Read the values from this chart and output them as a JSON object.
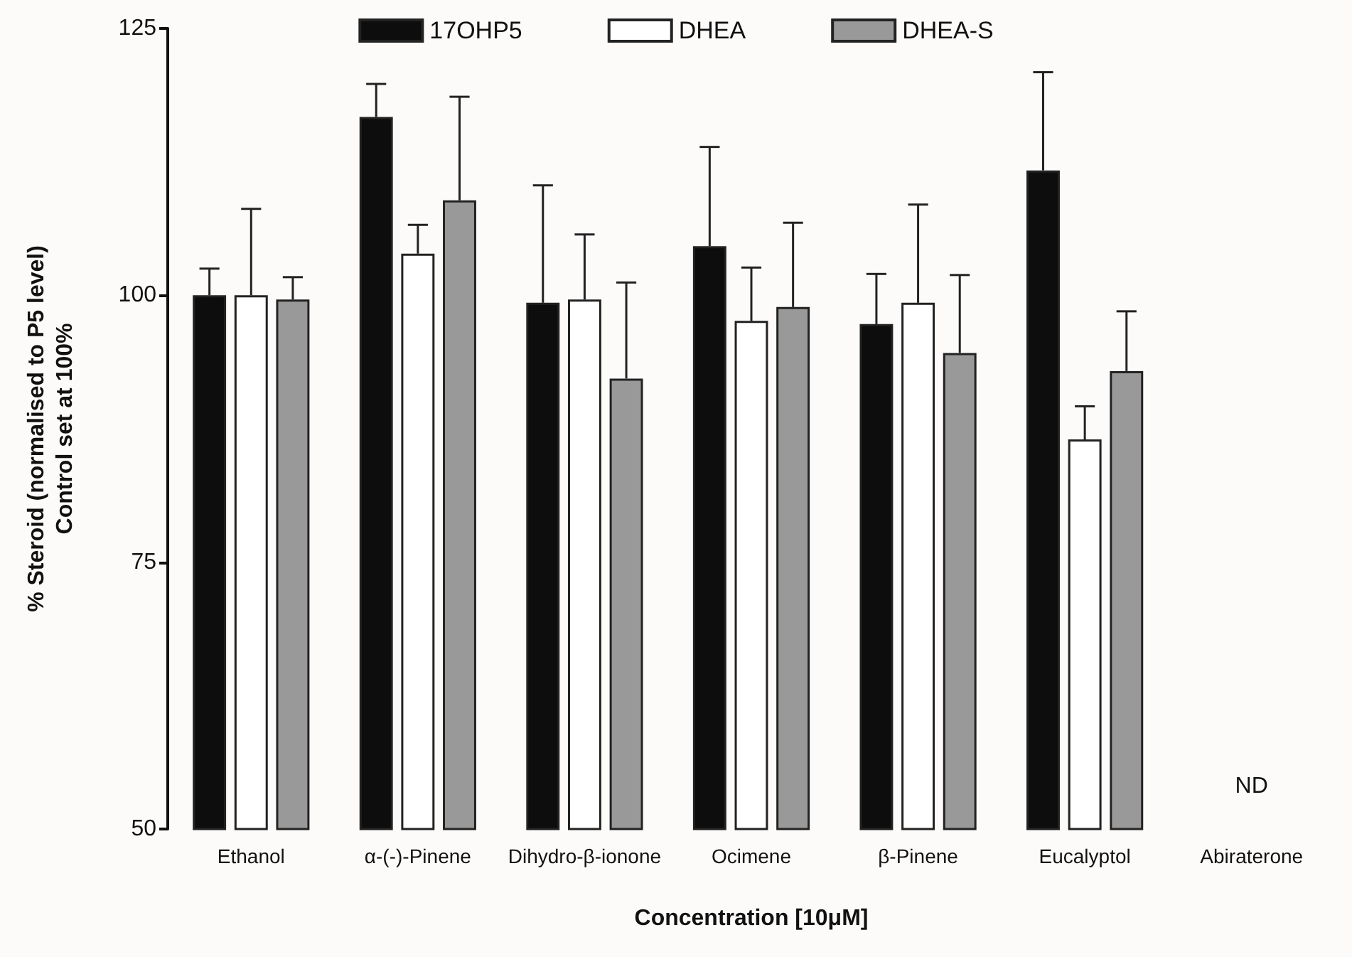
{
  "chart_data": {
    "type": "bar",
    "ylabel": "% Steroid (normalised to P5 level)\nControl set at 100%",
    "xlabel": "Concentration [10μM]",
    "categories": [
      "Ethanol",
      "α-(-)-Pinene",
      "Dihydro-β-ionone",
      "Ocimene",
      "β-Pinene",
      "Eucalyptol",
      "Abiraterone"
    ],
    "series": [
      {
        "name": "17OHP5",
        "color": "#0d0d0d",
        "values": [
          100,
          116.7,
          99.3,
          104.6,
          97.3,
          111.7,
          null
        ],
        "errors": [
          [
            100,
            102.5
          ],
          [
            116.7,
            119.8
          ],
          [
            99.3,
            110.3
          ],
          [
            104.6,
            113.9
          ],
          [
            97.3,
            102.0
          ],
          [
            111.7,
            120.9
          ],
          null
        ]
      },
      {
        "name": "DHEA",
        "color": "#ffffff",
        "values": [
          100,
          103.9,
          99.6,
          97.6,
          99.3,
          86.5,
          null
        ],
        "errors": [
          [
            100,
            108.1
          ],
          [
            103.9,
            106.6
          ],
          [
            99.6,
            105.7
          ],
          [
            97.6,
            102.6
          ],
          [
            99.3,
            108.5
          ],
          [
            86.5,
            89.6
          ],
          null
        ]
      },
      {
        "name": "DHEA-S",
        "color": "#999999",
        "values": [
          99.6,
          108.9,
          92.2,
          98.9,
          94.6,
          92.9,
          null
        ],
        "errors": [
          [
            99.6,
            101.7
          ],
          [
            108.9,
            118.6
          ],
          [
            92.2,
            101.2
          ],
          [
            98.9,
            106.8
          ],
          [
            94.6,
            101.9
          ],
          [
            92.9,
            98.5
          ],
          null
        ]
      }
    ],
    "ylim": [
      50,
      125
    ],
    "yticks": [
      50,
      75,
      100,
      125
    ],
    "annotations": [
      "ND"
    ],
    "legend": "top",
    "grid": false
  }
}
